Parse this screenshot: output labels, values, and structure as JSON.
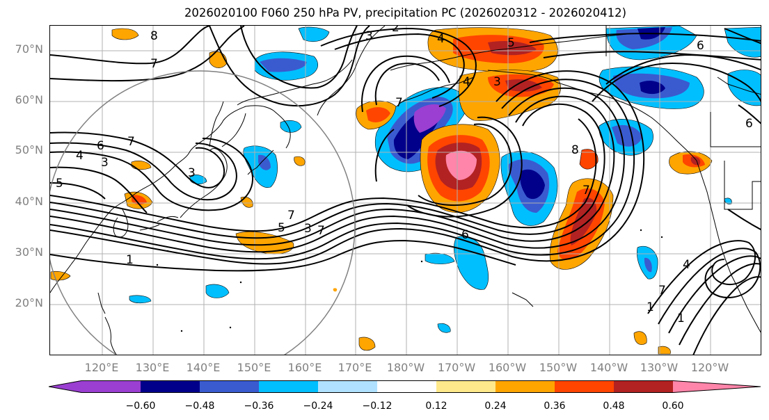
{
  "title": "2026020100 F060 250 hPa PV, precipitation PC (2026020312 - 2026020412)",
  "lat_labels": [
    "70°N",
    "60°N",
    "50°N",
    "40°N",
    "30°N",
    "20°N"
  ],
  "lon_labels": [
    "120°E",
    "130°E",
    "140°E",
    "150°E",
    "160°E",
    "170°E",
    "180°W",
    "170°W",
    "160°W",
    "150°W",
    "140°W",
    "130°W",
    "120°W"
  ],
  "contour_labels": [
    "8",
    "7",
    "3",
    "2",
    "4",
    "5",
    "6",
    "4",
    "3",
    "7",
    "6",
    "7",
    "6",
    "4",
    "3",
    "5",
    "3",
    "7",
    "8",
    "7",
    "6",
    "5",
    "3",
    "7",
    "1",
    "1",
    "1",
    "7",
    "4"
  ],
  "colorbar": {
    "ticks": [
      "−0.60",
      "−0.48",
      "−0.36",
      "−0.24",
      "−0.12",
      "0.12",
      "0.24",
      "0.36",
      "0.48",
      "0.60"
    ],
    "colors": [
      "#9a3fd1",
      "#00008b",
      "#3a5bd0",
      "#00bfff",
      "#b0e2ff",
      "#ffffff",
      "#ffe98a",
      "#ffa500",
      "#ff4500",
      "#b22222",
      "#ff85aa"
    ]
  },
  "colors": {
    "contour": "#000000",
    "coast": "#000000",
    "grid": "#b0b0b0",
    "circle": "#808080"
  }
}
